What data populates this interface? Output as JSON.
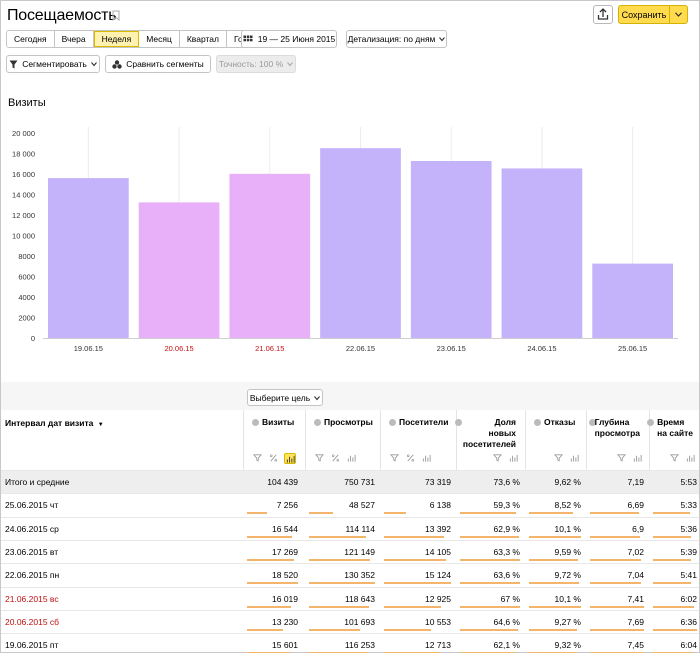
{
  "header": {
    "title": "Посещаемость",
    "save_label": "Сохранить"
  },
  "period_tabs": [
    "Сегодня",
    "Вчера",
    "Неделя",
    "Месяц",
    "Квартал",
    "Год"
  ],
  "active_period": "Неделя",
  "date_range": "19 — 25 Июня 2015",
  "detail": "Детализация: по дням",
  "segment_btn": "Сегментировать",
  "compare_btn": "Сравнить сегменты",
  "accuracy_btn": "Точность: 100 %",
  "colors": {
    "accent": "#ffdb4d",
    "weekday_bar": "#c4b3fa",
    "weekend_bar": "#e8b0f8",
    "underline": "#f2b56b",
    "weekend_text": "#c21010"
  },
  "chart_data": {
    "type": "bar",
    "title": "Визиты",
    "categories": [
      "19.06.15",
      "20.06.15",
      "21.06.15",
      "22.06.15",
      "23.06.15",
      "24.06.15",
      "25.06.15"
    ],
    "values": [
      15601,
      13230,
      16019,
      18520,
      17269,
      16544,
      7256
    ],
    "weekend": [
      false,
      true,
      true,
      false,
      false,
      false,
      false
    ],
    "ylim": [
      0,
      20000
    ],
    "yticks": [
      "0",
      "2000",
      "4000",
      "6000",
      "8000",
      "10 000",
      "12 000",
      "14 000",
      "16 000",
      "18 000",
      "20 000"
    ],
    "grid": true
  },
  "goal_select": "Выберите цель",
  "table": {
    "dim_header": "Интервал дат визита",
    "columns": [
      "Визиты",
      "Просмотры",
      "Посетители",
      "Доля новых посетителей",
      "Отказы",
      "Глубина просмотра",
      "Время на сайте"
    ],
    "column_lines": [
      [
        "Визиты"
      ],
      [
        "Просмотры"
      ],
      [
        "Посетители"
      ],
      [
        "Доля",
        "новых",
        "посетителей"
      ],
      [
        "Отказы"
      ],
      [
        "Глубина",
        "просмотра"
      ],
      [
        "Время",
        "на сайте"
      ]
    ],
    "total": {
      "label": "Итого и средние",
      "values": [
        "104 439",
        "750 731",
        "73 319",
        "73,6 %",
        "9,62 %",
        "7,19",
        "5:53"
      ]
    },
    "rows": [
      {
        "label": "25.06.2015 чт",
        "weekend": false,
        "values": [
          "7 256",
          "48 527",
          "6 138",
          "59,3 %",
          "8,52 %",
          "6,69",
          "5:33"
        ],
        "fill": [
          0.39,
          0.37,
          0.33,
          0.93,
          0.84,
          0.9,
          0.85
        ]
      },
      {
        "label": "24.06.2015 ср",
        "weekend": false,
        "values": [
          "16 544",
          "114 114",
          "13 392",
          "62,9 %",
          "10,1 %",
          "6,9",
          "5:36"
        ],
        "fill": [
          0.89,
          0.87,
          0.89,
          0.99,
          1.0,
          0.93,
          0.86
        ]
      },
      {
        "label": "23.06.2015 вт",
        "weekend": false,
        "values": [
          "17 269",
          "121 149",
          "14 105",
          "63,3 %",
          "9,59 %",
          "7,02",
          "5:39"
        ],
        "fill": [
          0.93,
          0.93,
          0.93,
          1.0,
          0.95,
          0.95,
          0.87
        ]
      },
      {
        "label": "22.06.2015 пн",
        "weekend": false,
        "values": [
          "18 520",
          "130 352",
          "15 124",
          "63,6 %",
          "9,72 %",
          "7,04",
          "5:41"
        ],
        "fill": [
          1.0,
          1.0,
          1.0,
          1.0,
          0.96,
          0.95,
          0.87
        ]
      },
      {
        "label": "21.06.2015 вс",
        "weekend": true,
        "values": [
          "16 019",
          "118 643",
          "12 925",
          "67 %",
          "10,1 %",
          "7,41",
          "6:02"
        ],
        "fill": [
          0.86,
          0.91,
          0.85,
          1.0,
          1.0,
          1.0,
          0.93
        ]
      },
      {
        "label": "20.06.2015 сб",
        "weekend": true,
        "values": [
          "13 230",
          "101 693",
          "10 553",
          "64,6 %",
          "9,27 %",
          "7,69",
          "6:36"
        ],
        "fill": [
          0.71,
          0.78,
          0.7,
          0.96,
          0.92,
          1.0,
          1.0
        ]
      },
      {
        "label": "19.06.2015 пт",
        "weekend": false,
        "values": [
          "15 601",
          "116 253",
          "12 713",
          "62,1 %",
          "9,32 %",
          "7,45",
          "6:04"
        ],
        "fill": [
          0.84,
          0.89,
          0.84,
          0.93,
          0.92,
          1.0,
          0.92
        ]
      }
    ]
  }
}
